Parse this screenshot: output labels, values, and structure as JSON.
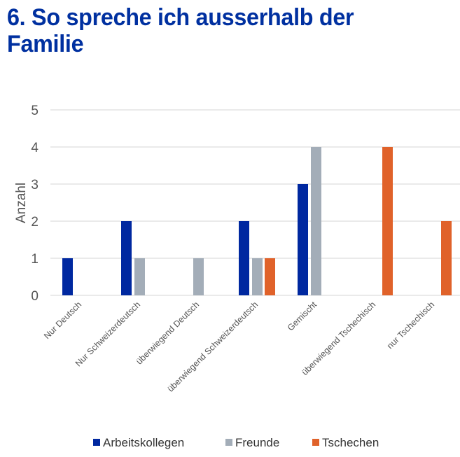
{
  "title_lines": [
    "6. So spreche ich ausserhalb der",
    "Familie"
  ],
  "chart_data": {
    "type": "bar",
    "title": "6. So spreche ich ausserhalb der Familie",
    "xlabel": "",
    "ylabel": "Anzahl",
    "ylim": [
      0,
      5
    ],
    "yticks": [
      0,
      1,
      2,
      3,
      4,
      5
    ],
    "grid": true,
    "legend_position": "bottom",
    "categories": [
      "Nur Deutsch",
      "Nur Schweizerdeutsch",
      "überwiegend Deutsch",
      "überwiegend Schweizerdeutsch",
      "Gemischt",
      "überwiegend Tschechisch",
      "nur Tschechisch"
    ],
    "series": [
      {
        "name": "Arbeitskollegen",
        "color": "#0028a0",
        "values": [
          1,
          2,
          0,
          2,
          3,
          0,
          0
        ]
      },
      {
        "name": "Freunde",
        "color": "#a3adb8",
        "values": [
          0,
          1,
          1,
          1,
          4,
          0,
          0
        ]
      },
      {
        "name": "Tschechen",
        "color": "#e0622a",
        "values": [
          0,
          0,
          0,
          1,
          0,
          4,
          2
        ]
      }
    ]
  }
}
